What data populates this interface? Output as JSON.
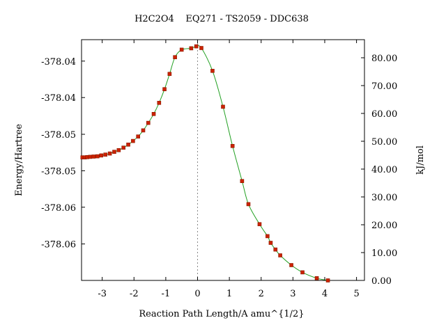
{
  "chart_data": {
    "type": "line",
    "title": "H2C2O4    EQ271 - TS2059 - DDC638",
    "xlabel": "Reaction Path Length/A amu^{1/2}",
    "ylabel_left": "Energy/Hartree",
    "ylabel_right": "kJ/mol",
    "xlim": [
      -3.65,
      5.25
    ],
    "ylim_right": [
      0,
      86.5
    ],
    "x_ticks": [
      -3,
      -2,
      -1,
      0,
      1,
      2,
      3,
      4,
      5
    ],
    "x_tick_labels": [
      "-3",
      "-2",
      "-1",
      "0",
      "1",
      "2",
      "3",
      "4",
      "5"
    ],
    "y_left_tick_labels": [
      "-378.04",
      "-378.04",
      "-378.05",
      "-378.05",
      "-378.06",
      "-378.06"
    ],
    "y_left_tick_values_kjmol": [
      78.8,
      65.7,
      52.5,
      39.4,
      26.3,
      13.1
    ],
    "y_right_ticks": [
      0,
      10,
      20,
      30,
      40,
      50,
      60,
      70,
      80
    ],
    "y_right_tick_labels": [
      "0.00",
      "10.00",
      "20.00",
      "30.00",
      "40.00",
      "50.00",
      "60.00",
      "70.00",
      "80.00"
    ],
    "ts_marker_x": 0,
    "grid": false,
    "colors": {
      "line": "#22a022",
      "marker": "#cc2200",
      "ts_line": "#888888"
    },
    "series": [
      {
        "x": [
          -3.62,
          -3.55,
          -3.47,
          -3.38,
          -3.27,
          -3.15,
          -3.03,
          -2.9,
          -2.76,
          -2.62,
          -2.48,
          -2.33,
          -2.18,
          -2.03,
          -1.87,
          -1.71,
          -1.55,
          -1.38,
          -1.21,
          -1.04,
          -0.88,
          -0.71,
          -0.5,
          -0.2,
          -0.04,
          0.12,
          0.47,
          0.8,
          1.1,
          1.4,
          1.6,
          1.95,
          2.2,
          2.3,
          2.45,
          2.6,
          2.95,
          3.3,
          3.75,
          4.1
        ],
        "y": [
          44.2,
          44.2,
          44.3,
          44.4,
          44.5,
          44.6,
          44.9,
          45.2,
          45.6,
          46.2,
          46.8,
          47.7,
          48.8,
          50.1,
          51.7,
          53.9,
          56.6,
          59.8,
          63.8,
          68.7,
          74.2,
          80.2,
          82.9,
          83.4,
          84.1,
          83.5,
          75.3,
          62.4,
          48.3,
          35.7,
          27.4,
          20.2,
          15.9,
          13.5,
          11.1,
          9.0,
          5.5,
          2.9,
          0.8,
          0.0
        ]
      }
    ]
  }
}
